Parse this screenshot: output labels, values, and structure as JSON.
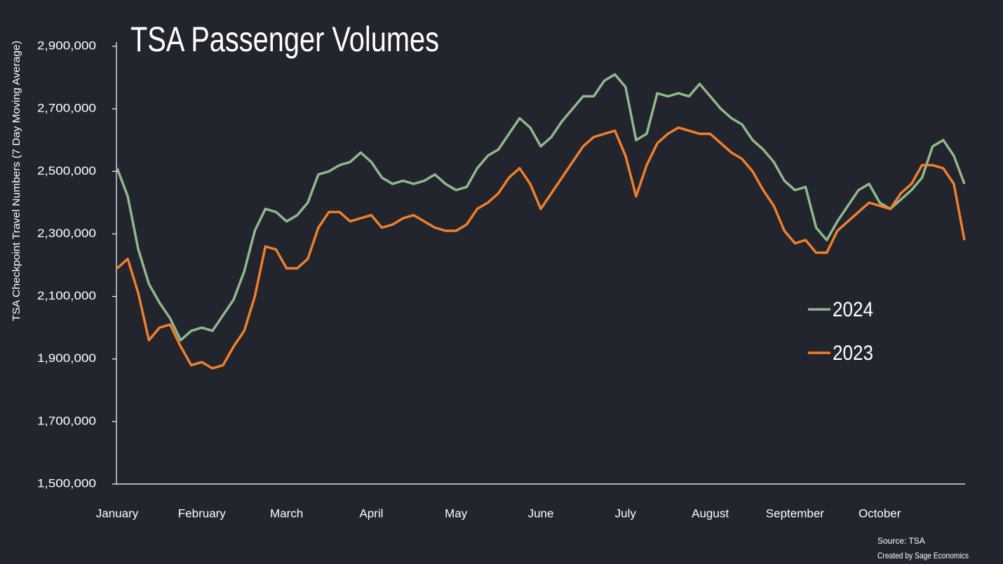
{
  "chart_data": {
    "type": "line",
    "title": "TSA Passenger Volumes",
    "y_label": "TSA Checkpoint Travel Numbers (7 Day Moving Average)",
    "source": "Source: TSA",
    "credit": "Created by Sage Economics",
    "categories": [
      "January",
      null,
      null,
      null,
      null,
      null,
      null,
      null,
      "February",
      null,
      null,
      null,
      null,
      null,
      null,
      null,
      "March",
      null,
      null,
      null,
      null,
      null,
      null,
      null,
      "April",
      null,
      null,
      null,
      null,
      null,
      null,
      null,
      "May",
      null,
      null,
      null,
      null,
      null,
      null,
      null,
      "June",
      null,
      null,
      null,
      null,
      null,
      null,
      null,
      "July",
      null,
      null,
      null,
      null,
      null,
      null,
      null,
      "August",
      null,
      null,
      null,
      null,
      null,
      null,
      null,
      "September",
      null,
      null,
      null,
      null,
      null,
      null,
      null,
      "October",
      null,
      null,
      null,
      null,
      null,
      null,
      null,
      null
    ],
    "series": [
      {
        "name": "2024",
        "color": "#8fb98b",
        "values": [
          2510000,
          2420000,
          2250000,
          2140000,
          2080000,
          2030000,
          1960000,
          1990000,
          2000000,
          1990000,
          2040000,
          2090000,
          2180000,
          2310000,
          2380000,
          2370000,
          2340000,
          2360000,
          2400000,
          2490000,
          2500000,
          2520000,
          2530000,
          2560000,
          2530000,
          2480000,
          2460000,
          2470000,
          2460000,
          2470000,
          2490000,
          2460000,
          2440000,
          2450000,
          2510000,
          2550000,
          2570000,
          2620000,
          2670000,
          2640000,
          2580000,
          2610000,
          2660000,
          2700000,
          2740000,
          2740000,
          2790000,
          2810000,
          2770000,
          2600000,
          2620000,
          2750000,
          2740000,
          2750000,
          2740000,
          2780000,
          2740000,
          2700000,
          2670000,
          2650000,
          2600000,
          2570000,
          2530000,
          2470000,
          2440000,
          2450000,
          2320000,
          2280000,
          2340000,
          2390000,
          2440000,
          2460000,
          2400000,
          2380000,
          2410000,
          2440000,
          2480000,
          2580000,
          2600000,
          2550000,
          2460000
        ]
      },
      {
        "name": "2023",
        "color": "#f07f2c",
        "values": [
          2190000,
          2220000,
          2110000,
          1960000,
          2000000,
          2010000,
          1940000,
          1880000,
          1890000,
          1870000,
          1880000,
          1940000,
          1990000,
          2100000,
          2260000,
          2250000,
          2190000,
          2190000,
          2220000,
          2320000,
          2370000,
          2370000,
          2340000,
          2350000,
          2360000,
          2320000,
          2330000,
          2350000,
          2360000,
          2340000,
          2320000,
          2310000,
          2310000,
          2330000,
          2380000,
          2400000,
          2430000,
          2480000,
          2510000,
          2460000,
          2380000,
          2430000,
          2480000,
          2530000,
          2580000,
          2610000,
          2620000,
          2630000,
          2550000,
          2420000,
          2520000,
          2590000,
          2620000,
          2640000,
          2630000,
          2620000,
          2620000,
          2590000,
          2560000,
          2540000,
          2500000,
          2440000,
          2390000,
          2310000,
          2270000,
          2280000,
          2240000,
          2240000,
          2310000,
          2340000,
          2370000,
          2400000,
          2390000,
          2380000,
          2430000,
          2460000,
          2520000,
          2520000,
          2510000,
          2460000,
          2280000
        ]
      }
    ],
    "ylim": [
      1500000,
      2900000
    ],
    "yticks": [
      {
        "value": 1500000,
        "label": "1,500,000"
      },
      {
        "value": 1700000,
        "label": "1,700,000"
      },
      {
        "value": 1900000,
        "label": "1,900,000"
      },
      {
        "value": 2100000,
        "label": "2,100,000"
      },
      {
        "value": 2300000,
        "label": "2,300,000"
      },
      {
        "value": 2500000,
        "label": "2,500,000"
      },
      {
        "value": 2700000,
        "label": "2,700,000"
      },
      {
        "value": 2900000,
        "label": "2,900,000"
      }
    ],
    "grid": false
  }
}
